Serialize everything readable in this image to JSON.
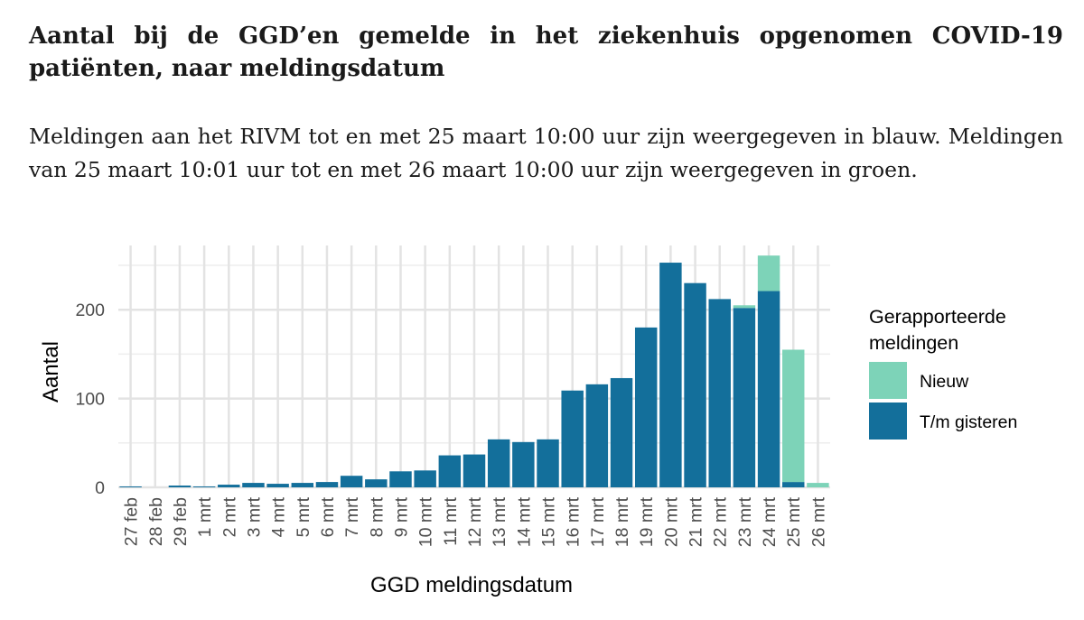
{
  "title": "Aantal bij de GGD’en gemelde in het ziekenhuis opgenomen COVID-19 patiënten, naar meldingsdatum",
  "subtitle": "Meldingen aan het RIVM tot en met 25 maart 10:00 uur zijn weergegeven in blauw. Meldingen van 25 maart 10:01 uur tot en met 26 maart 10:00 uur zijn weergegeven in groen.",
  "chart_data": {
    "type": "bar",
    "stacked": true,
    "xlabel": "GGD meldingsdatum",
    "ylabel": "Aantal",
    "ylim": [
      0,
      275
    ],
    "yticks": [
      0,
      100,
      200
    ],
    "grid": true,
    "categories": [
      "27 feb",
      "28 feb",
      "29 feb",
      "1 mrt",
      "2 mrt",
      "3 mrt",
      "4 mrt",
      "5 mrt",
      "6 mrt",
      "7 mrt",
      "8 mrt",
      "9 mrt",
      "10 mrt",
      "11 mrt",
      "12 mrt",
      "13 mrt",
      "14 mrt",
      "15 mrt",
      "16 mrt",
      "17 mrt",
      "18 mrt",
      "19 mrt",
      "20 mrt",
      "21 mrt",
      "22 mrt",
      "23 mrt",
      "24 mrt",
      "25 mrt",
      "26 mrt"
    ],
    "legend": {
      "title": "Gerapporteerde meldingen",
      "position": "right"
    },
    "series": [
      {
        "name": "T/m gisteren",
        "color": "#136f9b",
        "values": [
          1,
          0,
          2,
          1,
          3,
          5,
          4,
          5,
          6,
          13,
          9,
          18,
          19,
          36,
          37,
          54,
          51,
          54,
          109,
          116,
          123,
          180,
          253,
          230,
          212,
          202,
          221,
          6,
          0
        ]
      },
      {
        "name": "Nieuw",
        "color": "#7dd3b8",
        "values": [
          0,
          0,
          0,
          0,
          0,
          0,
          0,
          0,
          0,
          0,
          0,
          0,
          0,
          0,
          0,
          0,
          0,
          0,
          0,
          0,
          0,
          0,
          0,
          0,
          0,
          3,
          40,
          149,
          5
        ]
      }
    ]
  }
}
